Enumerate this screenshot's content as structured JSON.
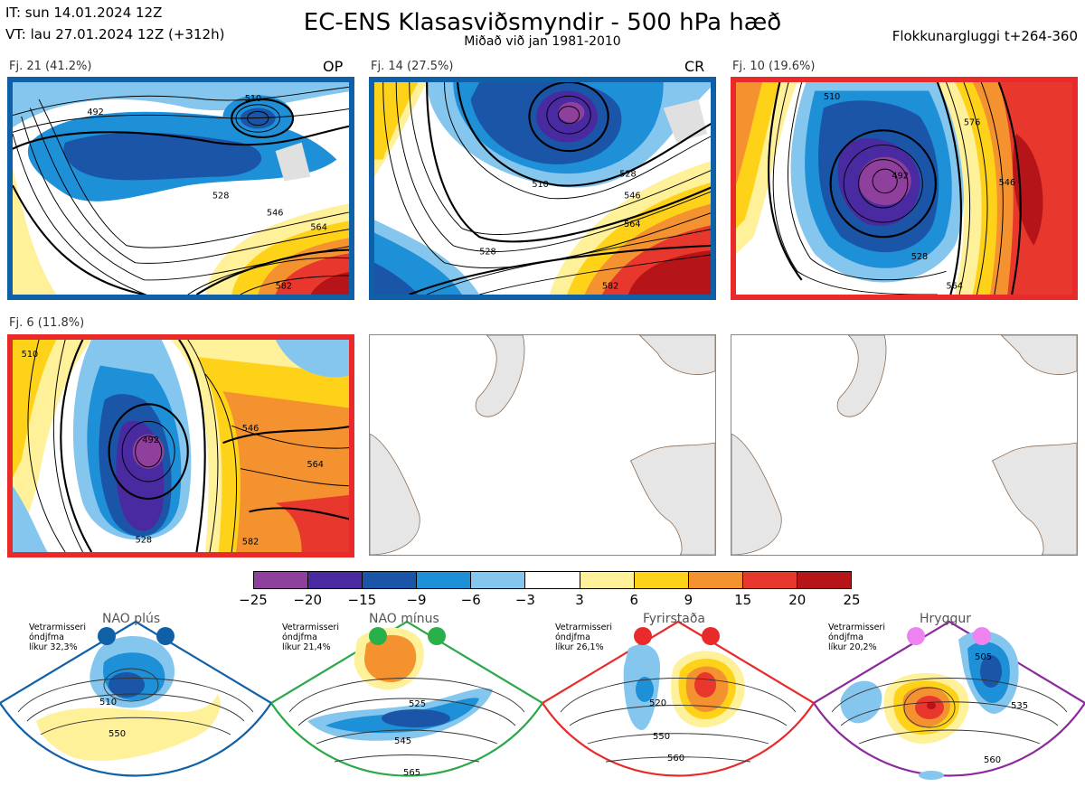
{
  "header": {
    "it": "IT: sun 14.01.2024 12Z",
    "vt": "VT: lau 27.01.2024 12Z  (+312h)",
    "title": "EC-ENS Klasasviðsmyndir - 500 hPa hæð",
    "subtitle": "Miðað við jan 1981-2010",
    "window": "Flokkunargluggi t+264-360"
  },
  "clusters": [
    {
      "label": "Fj. 21 (41.2%)",
      "tag": "OP",
      "frame": "#1060a8",
      "contours": [
        "492",
        "510",
        "528",
        "546",
        "564",
        "582"
      ]
    },
    {
      "label": "Fj. 14 (27.5%)",
      "tag": "CR",
      "frame": "#1060a8",
      "contours": [
        "528",
        "510",
        "528",
        "546",
        "564",
        "582"
      ]
    },
    {
      "label": "Fj. 10 (19.6%)",
      "tag": "",
      "frame": "#e82a2a",
      "contours": [
        "510",
        "492",
        "528",
        "546",
        "564",
        "576"
      ]
    },
    {
      "label": "Fj. 6 (11.8%)",
      "tag": "",
      "frame": "#e82a2a",
      "contours": [
        "510",
        "492",
        "528",
        "546",
        "564",
        "582"
      ]
    }
  ],
  "colorbar": {
    "colors": [
      "#8f3f9c",
      "#4a2aa0",
      "#1a55a8",
      "#1e90d8",
      "#85c6ee",
      "#ffffff",
      "#fff09a",
      "#ffd21a",
      "#f59230",
      "#e8382e",
      "#b51418"
    ],
    "ticks": [
      "−25",
      "−20",
      "−15",
      "−9",
      "−6",
      "−3",
      "3",
      "6",
      "9",
      "15",
      "20",
      "25"
    ]
  },
  "regimes": [
    {
      "name": "NAO plús",
      "info": "Vetrarmisseri\nóndjfma\nlíkur 32,3%",
      "edge": "#1060a8",
      "dot": "#1060a8",
      "labels": [
        "510",
        "550"
      ]
    },
    {
      "name": "NAO mínus",
      "info": "Vetrarmisseri\nóndjfma\nlíkur 21,4%",
      "edge": "#2aa84a",
      "dot": "#2ab04a",
      "labels": [
        "525",
        "545",
        "565"
      ]
    },
    {
      "name": "Fyrirstaða",
      "info": "Vetrarmisseri\nóndjfma\nlíkur 26,1%",
      "edge": "#e82a2a",
      "dot": "#e82a2a",
      "labels": [
        "520",
        "550",
        "560"
      ]
    },
    {
      "name": "Hryggur",
      "info": "Vetrarmisseri\nóndjfma\nlíkur 20,2%",
      "edge": "#8b2a9c",
      "dot": "#ee82ee",
      "labels": [
        "505",
        "535",
        "560"
      ]
    }
  ]
}
